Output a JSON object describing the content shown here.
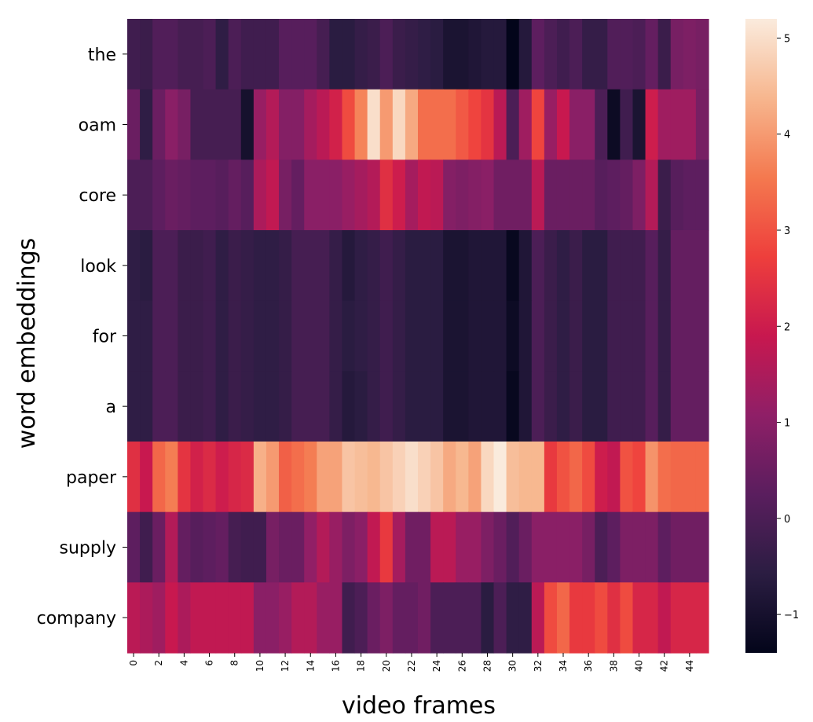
{
  "chart_data": {
    "type": "heatmap",
    "title": "",
    "xlabel": "video frames",
    "ylabel": "word embeddings",
    "rows": [
      "the",
      "oam",
      "core",
      "look",
      "for",
      "a",
      "paper",
      "supply",
      "company"
    ],
    "x_tick_labels": [
      "0",
      "2",
      "4",
      "6",
      "8",
      "10",
      "12",
      "14",
      "16",
      "18",
      "20",
      "22",
      "24",
      "26",
      "28",
      "30",
      "32",
      "34",
      "36",
      "38",
      "40",
      "42",
      "44"
    ],
    "columns_count": 46,
    "colorbar": {
      "min": -1.4,
      "max": 5.2,
      "ticks": [
        -1,
        0,
        1,
        2,
        3,
        4,
        5
      ],
      "tick_labels": [
        "−1",
        "0",
        "1",
        "2",
        "3",
        "4",
        "5"
      ]
    },
    "values": [
      [
        -0.2,
        -0.3,
        0.1,
        0.1,
        -0.1,
        -0.1,
        0.0,
        -0.5,
        0.0,
        -0.2,
        -0.2,
        -0.2,
        0.2,
        0.2,
        0.2,
        -0.1,
        -0.6,
        -0.6,
        -0.4,
        -0.3,
        0.0,
        -0.3,
        -0.4,
        -0.5,
        -0.6,
        -0.9,
        -0.9,
        -0.8,
        -0.7,
        -0.7,
        -1.4,
        -0.7,
        0.3,
        0.0,
        -0.2,
        0.0,
        -0.4,
        -0.4,
        0.1,
        0.1,
        0.0,
        0.4,
        -0.3,
        0.7,
        0.8,
        0.7
      ],
      [
        0.5,
        -0.5,
        0.5,
        1.0,
        0.7,
        -0.1,
        -0.1,
        -0.1,
        -0.1,
        -1.0,
        1.2,
        1.6,
        0.9,
        0.9,
        1.4,
        1.7,
        2.1,
        2.9,
        3.7,
        5.0,
        4.0,
        4.9,
        4.2,
        3.4,
        3.4,
        3.4,
        3.1,
        2.8,
        2.5,
        1.7,
        0.0,
        1.3,
        2.8,
        1.2,
        1.9,
        1.0,
        1.0,
        0.0,
        -1.2,
        -0.2,
        -0.9,
        2.0,
        1.3,
        1.3,
        1.3,
        0.7
      ],
      [
        0.0,
        0.0,
        0.3,
        0.5,
        0.4,
        0.3,
        0.3,
        0.2,
        0.4,
        0.2,
        1.5,
        1.8,
        0.7,
        0.4,
        1.0,
        1.0,
        1.0,
        1.2,
        1.4,
        1.6,
        2.4,
        2.0,
        1.4,
        1.8,
        1.7,
        0.9,
        0.8,
        0.9,
        1.0,
        0.6,
        0.6,
        0.6,
        1.7,
        0.5,
        0.5,
        0.5,
        0.5,
        0.2,
        0.3,
        0.4,
        0.8,
        1.6,
        -0.3,
        0.2,
        0.3,
        0.3
      ],
      [
        -0.5,
        -0.6,
        0.0,
        0.0,
        -0.3,
        -0.3,
        -0.2,
        -0.5,
        -0.3,
        -0.4,
        -0.5,
        -0.5,
        -0.4,
        -0.1,
        -0.1,
        -0.1,
        -0.4,
        -0.7,
        -0.5,
        -0.4,
        -0.2,
        -0.4,
        -0.6,
        -0.6,
        -0.6,
        -0.9,
        -0.9,
        -0.8,
        -0.8,
        -0.8,
        -1.3,
        -0.8,
        0.0,
        -0.3,
        -0.5,
        -0.3,
        -0.6,
        -0.6,
        -0.2,
        -0.2,
        -0.2,
        0.2,
        -0.4,
        0.4,
        0.4,
        0.4
      ],
      [
        -0.5,
        -0.5,
        0.0,
        0.0,
        -0.3,
        -0.3,
        -0.2,
        -0.5,
        -0.3,
        -0.4,
        -0.5,
        -0.5,
        -0.4,
        -0.1,
        -0.1,
        -0.1,
        -0.4,
        -0.6,
        -0.5,
        -0.4,
        -0.2,
        -0.4,
        -0.6,
        -0.6,
        -0.6,
        -0.9,
        -0.9,
        -0.8,
        -0.8,
        -0.8,
        -1.2,
        -0.8,
        0.0,
        -0.3,
        -0.5,
        -0.3,
        -0.6,
        -0.6,
        -0.2,
        -0.2,
        -0.2,
        0.2,
        -0.4,
        0.4,
        0.4,
        0.4
      ],
      [
        -0.5,
        -0.5,
        0.0,
        0.0,
        -0.3,
        -0.3,
        -0.2,
        -0.5,
        -0.3,
        -0.4,
        -0.5,
        -0.5,
        -0.4,
        -0.1,
        -0.1,
        -0.1,
        -0.4,
        -0.7,
        -0.6,
        -0.4,
        -0.2,
        -0.4,
        -0.6,
        -0.6,
        -0.6,
        -0.9,
        -0.9,
        -0.8,
        -0.8,
        -0.8,
        -1.3,
        -0.8,
        0.0,
        -0.3,
        -0.5,
        -0.3,
        -0.6,
        -0.6,
        -0.2,
        -0.2,
        -0.2,
        0.2,
        -0.4,
        0.4,
        0.4,
        0.4
      ],
      [
        2.4,
        1.9,
        3.3,
        3.6,
        2.5,
        2.1,
        2.3,
        2.0,
        2.2,
        2.3,
        4.3,
        4.0,
        3.2,
        3.4,
        3.6,
        4.1,
        4.1,
        4.6,
        4.5,
        4.4,
        4.6,
        4.8,
        5.0,
        4.8,
        4.6,
        4.2,
        4.4,
        4.1,
        4.9,
        5.2,
        4.5,
        4.4,
        4.4,
        2.6,
        3.0,
        3.3,
        2.9,
        2.0,
        1.8,
        3.0,
        2.8,
        3.9,
        3.4,
        3.3,
        3.3,
        3.3
      ],
      [
        0.3,
        -0.2,
        0.5,
        1.6,
        0.4,
        0.2,
        0.3,
        0.4,
        -0.1,
        -0.2,
        -0.2,
        0.7,
        0.5,
        0.5,
        1.1,
        1.6,
        1.2,
        0.8,
        1.0,
        1.8,
        2.6,
        1.4,
        0.6,
        0.6,
        1.7,
        1.7,
        1.2,
        1.2,
        0.8,
        0.5,
        0.1,
        0.5,
        1.0,
        1.0,
        1.0,
        1.0,
        0.7,
        0.0,
        0.3,
        0.8,
        0.8,
        0.8,
        0.3,
        0.6,
        0.6,
        0.6
      ],
      [
        1.7,
        1.5,
        1.3,
        1.9,
        1.5,
        1.8,
        1.8,
        1.8,
        1.8,
        1.8,
        1.0,
        1.0,
        1.2,
        1.6,
        1.6,
        1.2,
        1.2,
        -0.2,
        0.0,
        0.5,
        0.8,
        0.4,
        0.4,
        0.6,
        0.0,
        0.0,
        0.0,
        0.0,
        -0.6,
        0.0,
        -0.5,
        -0.5,
        1.7,
        2.9,
        3.3,
        2.6,
        2.6,
        2.9,
        2.4,
        2.9,
        2.2,
        2.2,
        1.8,
        2.2,
        2.2,
        2.2
      ]
    ]
  }
}
